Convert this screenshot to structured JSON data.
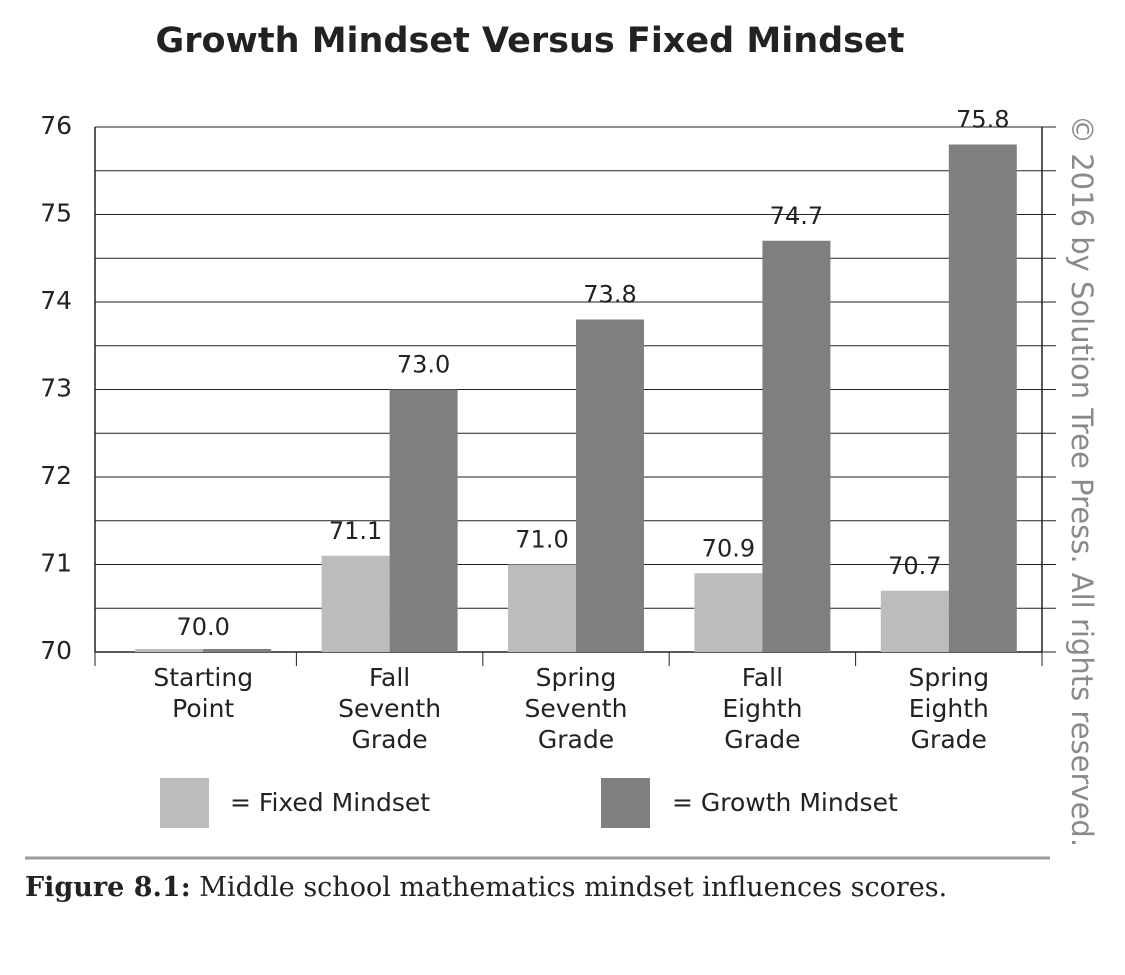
{
  "chart_data": {
    "type": "bar",
    "title": "Growth Mindset Versus Fixed Mindset",
    "categories": [
      "Starting Point",
      "Fall Seventh Grade",
      "Spring Seventh Grade",
      "Fall Eighth Grade",
      "Spring Eighth Grade"
    ],
    "series": [
      {
        "name": "= Fixed Mindset",
        "color": "#bcbcbc",
        "values": [
          70.0,
          71.1,
          71.0,
          70.9,
          70.7
        ],
        "value_labels": [
          "70.0",
          "71.1",
          "71.0",
          "70.9",
          "70.7"
        ]
      },
      {
        "name": "= Growth Mindset",
        "color": "#7f7f7f",
        "values": [
          70.0,
          73.0,
          73.8,
          74.7,
          75.8
        ],
        "value_labels": [
          null,
          "73.0",
          "73.8",
          "74.7",
          "75.8"
        ]
      }
    ],
    "ylim": [
      70,
      76
    ],
    "yticks": [
      70,
      71,
      72,
      73,
      74,
      75,
      76
    ],
    "grid": true,
    "copyright": "© 2016 by Solution Tree Press. All rights reserved."
  },
  "caption": {
    "label": "Figure 8.1:",
    "text": "Middle school mathematics mindset influences scores."
  }
}
